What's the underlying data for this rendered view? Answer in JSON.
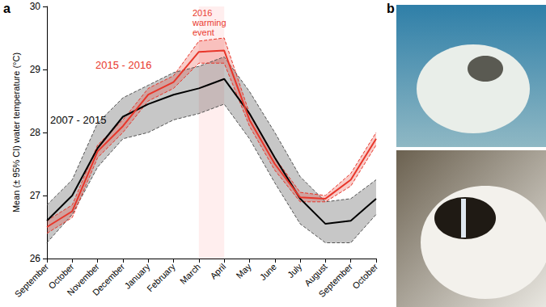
{
  "chart_data": {
    "type": "line",
    "panel_labels": [
      "a",
      "b"
    ],
    "y_label": "Mean (± 95% CI) water temperature (°C)",
    "categories": [
      "September",
      "October",
      "November",
      "December",
      "January",
      "February",
      "March",
      "April",
      "May",
      "June",
      "July",
      "August",
      "September",
      "October"
    ],
    "ylim": [
      26,
      30
    ],
    "yticks": [
      26,
      27,
      28,
      29,
      30
    ],
    "grid": false,
    "series": [
      {
        "name": "2007 - 2015",
        "color": "#000000",
        "values": [
          26.6,
          27.0,
          27.75,
          28.25,
          28.45,
          28.6,
          28.7,
          28.85,
          28.3,
          27.6,
          26.95,
          26.55,
          26.6,
          26.95
        ],
        "ci_lower": [
          26.25,
          26.7,
          27.45,
          27.9,
          28.0,
          28.2,
          28.3,
          28.45,
          27.9,
          27.2,
          26.55,
          26.25,
          26.25,
          26.7
        ],
        "ci_upper": [
          26.85,
          27.25,
          28.15,
          28.55,
          28.75,
          28.95,
          29.05,
          29.2,
          28.65,
          28.0,
          27.3,
          26.9,
          26.95,
          27.25
        ]
      },
      {
        "name": "2015 - 2016",
        "color": "#e8362a",
        "values": [
          26.5,
          26.75,
          27.7,
          28.1,
          28.6,
          28.8,
          29.28,
          29.3,
          28.2,
          27.5,
          26.97,
          26.95,
          27.25,
          27.9
        ],
        "ci_lower": [
          26.4,
          26.65,
          27.6,
          28.0,
          28.5,
          28.7,
          29.1,
          29.1,
          28.1,
          27.4,
          26.9,
          26.9,
          27.15,
          27.8
        ],
        "ci_upper": [
          26.6,
          26.85,
          27.8,
          28.2,
          28.7,
          28.9,
          29.45,
          29.5,
          28.3,
          27.6,
          27.05,
          27.0,
          27.35,
          28.0
        ]
      }
    ],
    "annotations": [
      {
        "text": "2016 warming event",
        "x_start": "March",
        "x_end": "April"
      }
    ]
  }
}
